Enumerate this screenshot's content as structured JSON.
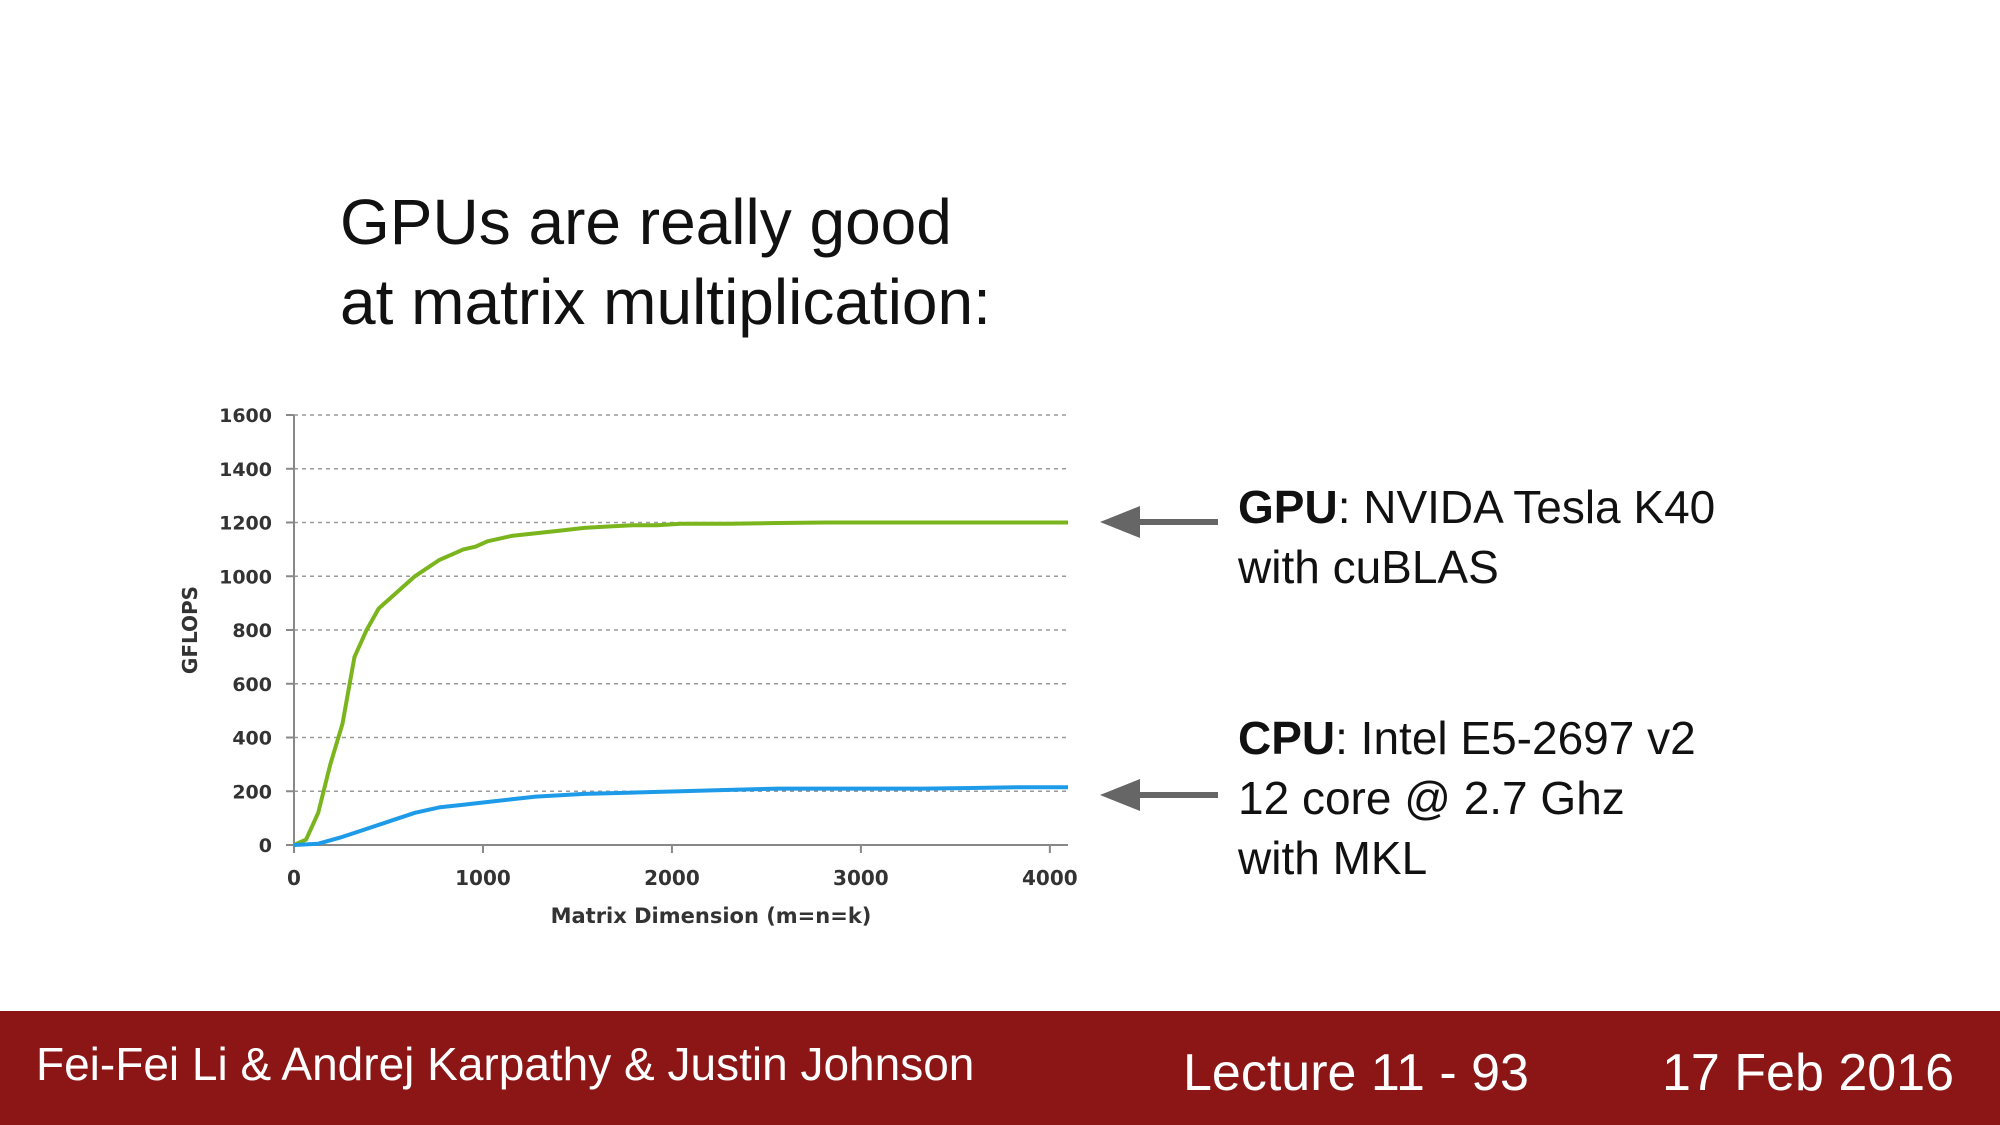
{
  "slide": {
    "title_line1": "GPUs are really good",
    "title_line2": "at matrix multiplication:"
  },
  "annotations": {
    "gpu": {
      "bold": "GPU",
      "line1_rest": ": NVIDA Tesla K40",
      "line2": "with cuBLAS"
    },
    "cpu": {
      "bold": "CPU",
      "line1_rest": ": Intel E5-2697 v2",
      "line2": "12 core @ 2.7 Ghz",
      "line3": "with MKL"
    },
    "arrow_color": "#666666"
  },
  "footer": {
    "authors": "Fei-Fei Li & Andrej Karpathy & Justin Johnson",
    "lecture": "Lecture 11 - 93",
    "date": "17 Feb 2016",
    "background": "#8c1515"
  },
  "chart_data": {
    "type": "line",
    "title": "",
    "xlabel": "Matrix Dimension (m=n=k)",
    "ylabel": "GFLOPS",
    "xlim": [
      0,
      4096
    ],
    "ylim": [
      0,
      1600
    ],
    "xticks": [
      0,
      1000,
      2000,
      3000,
      4000
    ],
    "yticks": [
      0,
      200,
      400,
      600,
      800,
      1000,
      1200,
      1400,
      1600
    ],
    "grid": "horizontal dashed",
    "series": [
      {
        "color": "#7ab51d",
        "x": [
          0,
          64,
          128,
          192,
          256,
          320,
          384,
          448,
          512,
          576,
          640,
          704,
          768,
          832,
          896,
          960,
          1024,
          1152,
          1280,
          1408,
          1536,
          1664,
          1792,
          1920,
          2048,
          2304,
          2560,
          2816,
          3072,
          3328,
          3584,
          3840,
          4096
        ],
        "values": [
          0,
          20,
          120,
          300,
          450,
          700,
          800,
          880,
          920,
          960,
          1000,
          1030,
          1060,
          1080,
          1100,
          1110,
          1130,
          1150,
          1160,
          1170,
          1180,
          1185,
          1190,
          1190,
          1195,
          1195,
          1198,
          1200,
          1200,
          1200,
          1200,
          1200,
          1200
        ]
      },
      {
        "color": "#1e9be8",
        "x": [
          0,
          128,
          256,
          384,
          512,
          640,
          768,
          896,
          1024,
          1152,
          1280,
          1536,
          1792,
          2048,
          2304,
          2560,
          2816,
          3072,
          3328,
          3584,
          3840,
          4096
        ],
        "values": [
          0,
          5,
          30,
          60,
          90,
          120,
          140,
          150,
          160,
          170,
          180,
          190,
          195,
          200,
          205,
          210,
          210,
          210,
          210,
          212,
          215,
          215
        ]
      }
    ]
  }
}
